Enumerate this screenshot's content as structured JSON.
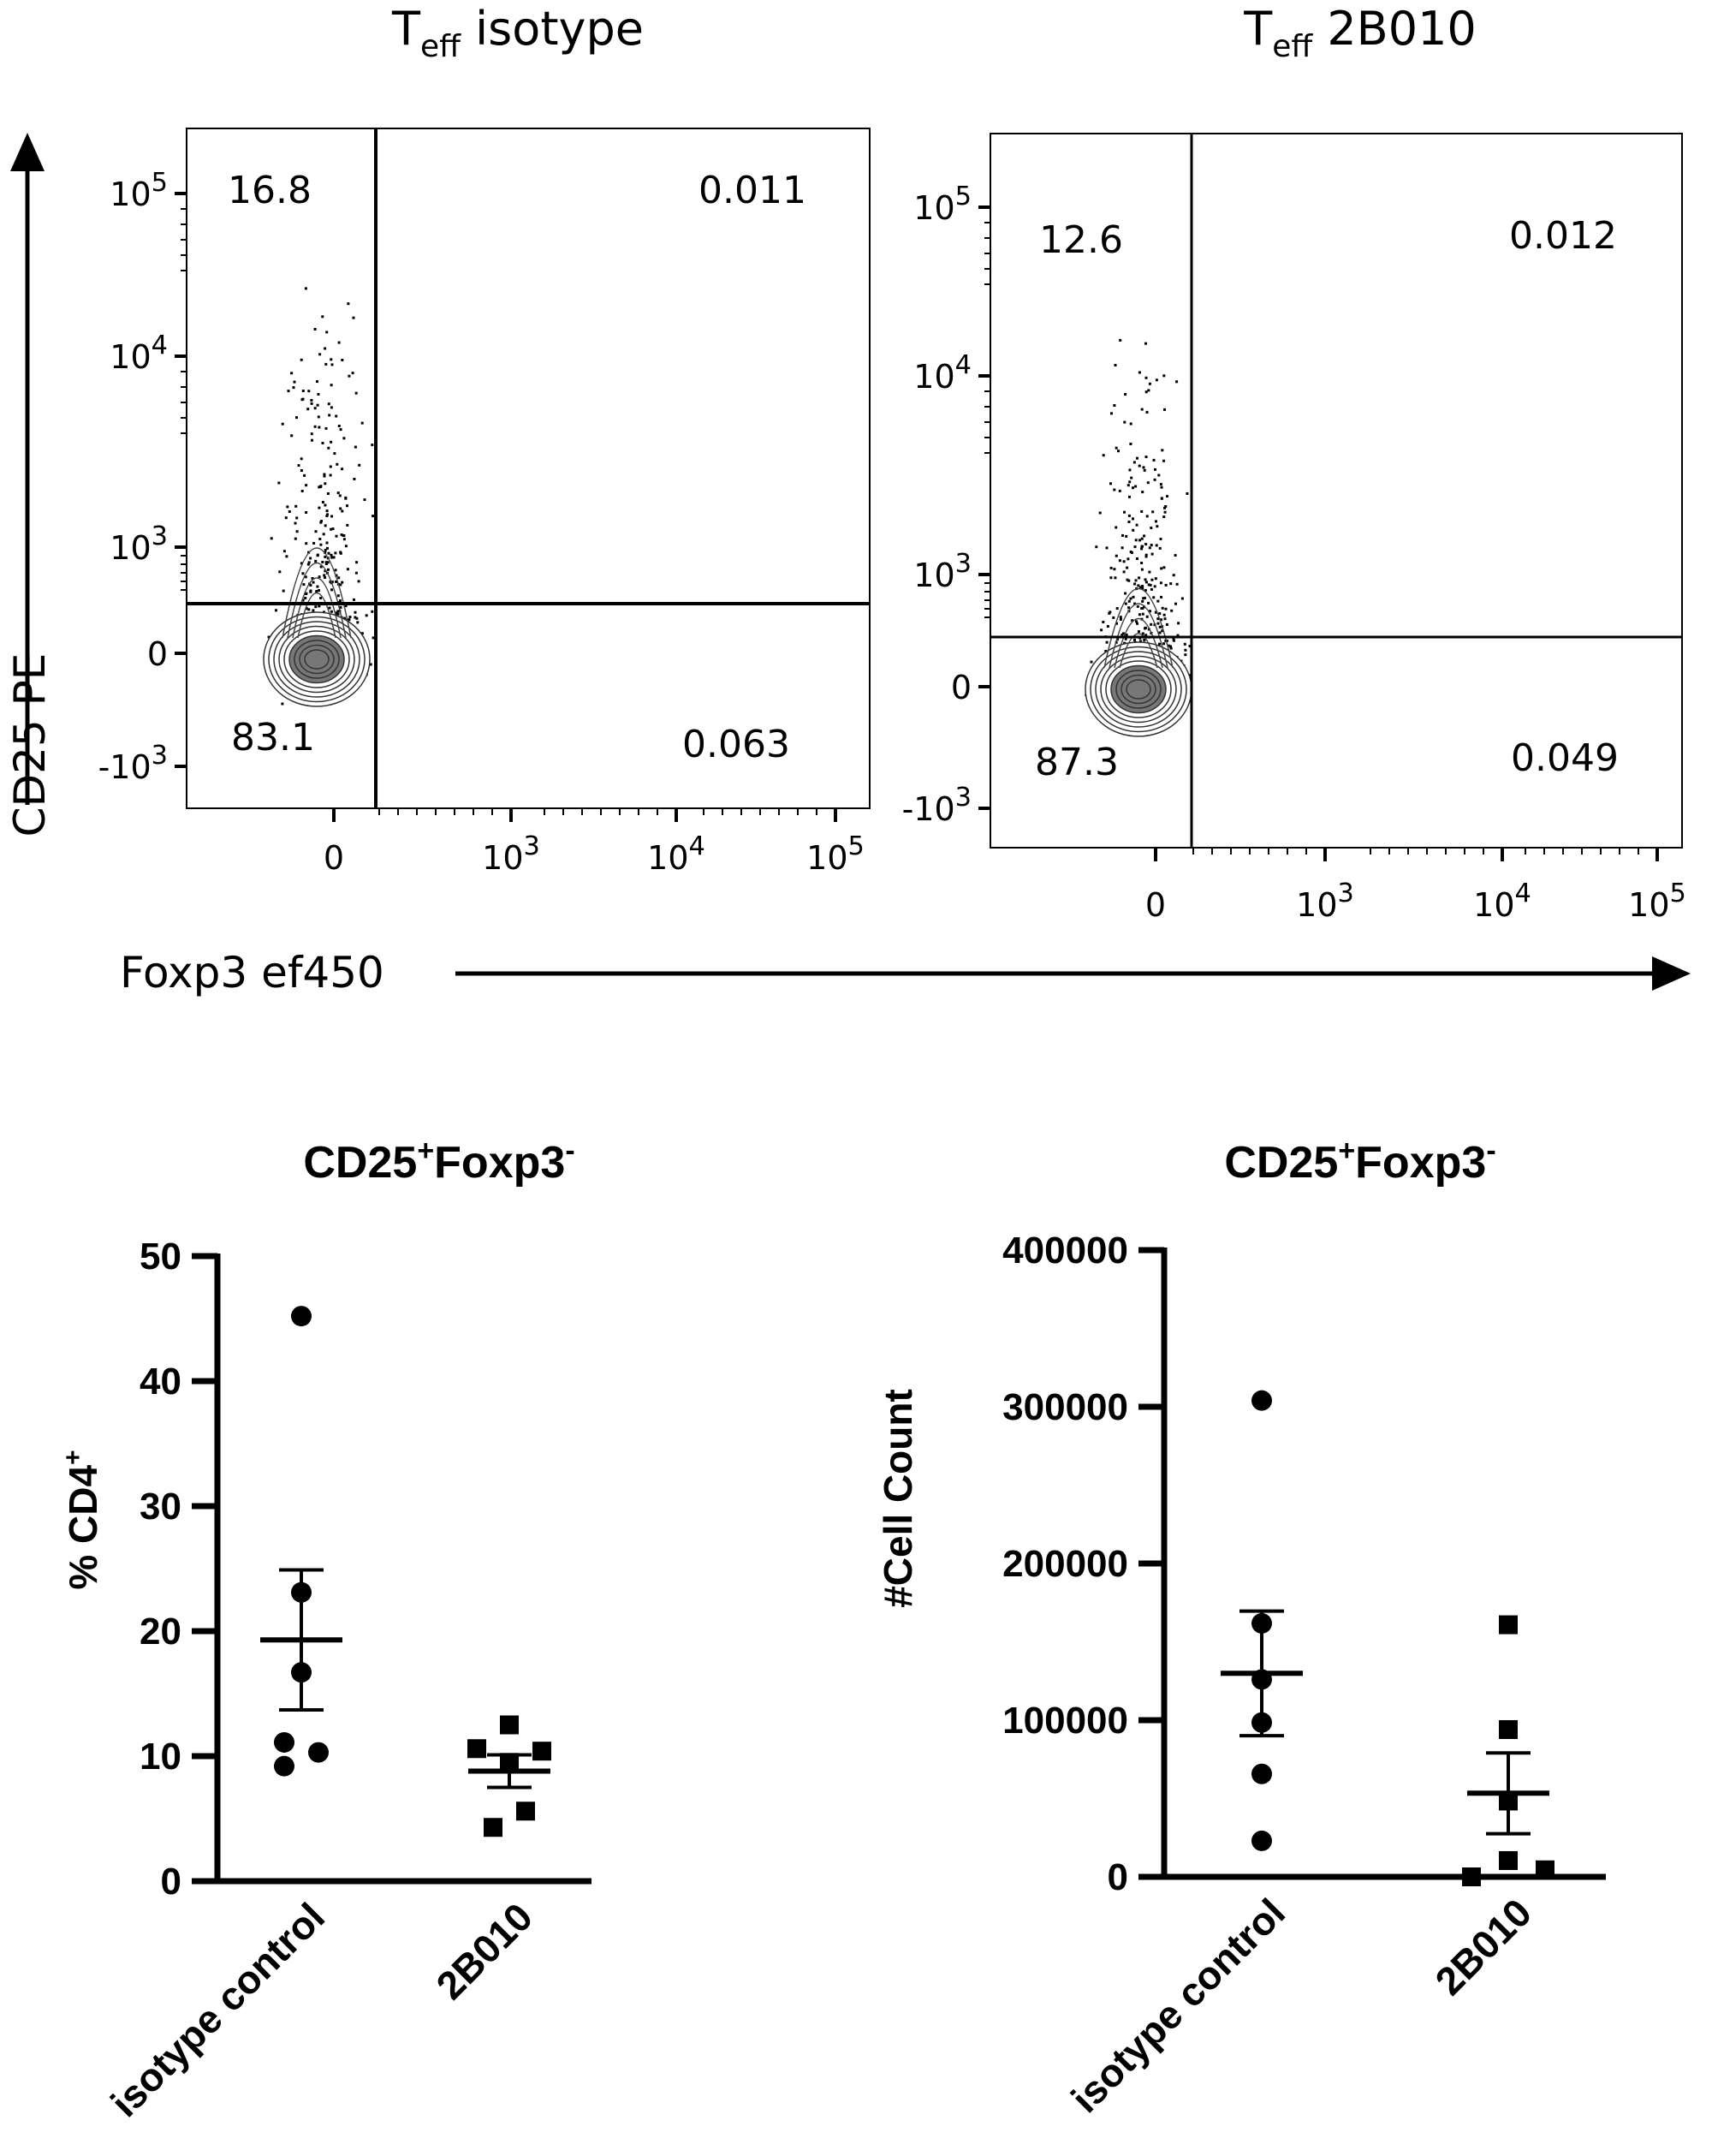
{
  "flow_panels": [
    {
      "title_main": "T",
      "title_sub": "eff",
      "title_rest": " isotype",
      "quadrants": {
        "upper_left": "16.8",
        "upper_right": "0.011",
        "lower_left": "83.1",
        "lower_right": "0.063"
      },
      "y_ticks": [
        {
          "base": "10",
          "exp": "5"
        },
        {
          "base": "10",
          "exp": "4"
        },
        {
          "base": "10",
          "exp": "3"
        },
        {
          "base": "0",
          "exp": ""
        },
        {
          "base": "-10",
          "exp": "3"
        }
      ],
      "x_ticks": [
        {
          "base": "0",
          "exp": ""
        },
        {
          "base": "10",
          "exp": "3"
        },
        {
          "base": "10",
          "exp": "4"
        },
        {
          "base": "10",
          "exp": "5"
        }
      ]
    },
    {
      "title_main": "T",
      "title_sub": "eff",
      "title_rest": " 2B010",
      "quadrants": {
        "upper_left": "12.6",
        "upper_right": "0.012",
        "lower_left": "87.3",
        "lower_right": "0.049"
      },
      "y_ticks": [
        {
          "base": "10",
          "exp": "5"
        },
        {
          "base": "10",
          "exp": "4"
        },
        {
          "base": "10",
          "exp": "3"
        },
        {
          "base": "0",
          "exp": ""
        },
        {
          "base": "-10",
          "exp": "3"
        }
      ],
      "x_ticks": [
        {
          "base": "0",
          "exp": ""
        },
        {
          "base": "10",
          "exp": "3"
        },
        {
          "base": "10",
          "exp": "4"
        },
        {
          "base": "10",
          "exp": "5"
        }
      ]
    }
  ],
  "flow_axes": {
    "y_label": "CD25 PE",
    "x_label": "Foxp3 ef450"
  },
  "chart_data": [
    {
      "type": "scatter",
      "title": "CD25",
      "title_sup": "+",
      "title_rest": "Foxp3",
      "title_sup2": "-",
      "ylabel": "% CD4",
      "ylabel_sup": "+",
      "ylim": [
        0,
        50
      ],
      "yticks": [
        "0",
        "10",
        "20",
        "30",
        "40",
        "50"
      ],
      "categories": [
        "isotype control",
        "2B010"
      ],
      "series": [
        {
          "category": "isotype control",
          "marker": "circle",
          "values": [
            45.2,
            23.1,
            16.7,
            11.1,
            10.3,
            9.2
          ],
          "mean": 19.3,
          "sem_low": 13.7,
          "sem_high": 24.9
        },
        {
          "category": "2B010",
          "marker": "square",
          "values": [
            12.5,
            10.6,
            10.4,
            9.5,
            5.6,
            4.3
          ],
          "mean": 8.8,
          "sem_low": 7.5,
          "sem_high": 10.1
        }
      ]
    },
    {
      "type": "scatter",
      "title": "CD25",
      "title_sup": "+",
      "title_rest": "Foxp3",
      "title_sup2": "-",
      "ylabel": "#Cell Count",
      "ylabel_sup": "",
      "ylim": [
        0,
        400000
      ],
      "yticks": [
        "0",
        "100000",
        "200000",
        "300000",
        "400000"
      ],
      "categories": [
        "isotype control",
        "2B010"
      ],
      "series": [
        {
          "category": "isotype control",
          "marker": "circle",
          "values": [
            304000,
            161800,
            126000,
            98500,
            65700,
            23000
          ],
          "mean": 129900,
          "sem_low": 90100,
          "sem_high": 169600
        },
        {
          "category": "2B010",
          "marker": "square",
          "values": [
            160900,
            94000,
            48400,
            10400,
            4500,
            0
          ],
          "mean": 53400,
          "sem_low": 27500,
          "sem_high": 79100
        }
      ]
    }
  ]
}
